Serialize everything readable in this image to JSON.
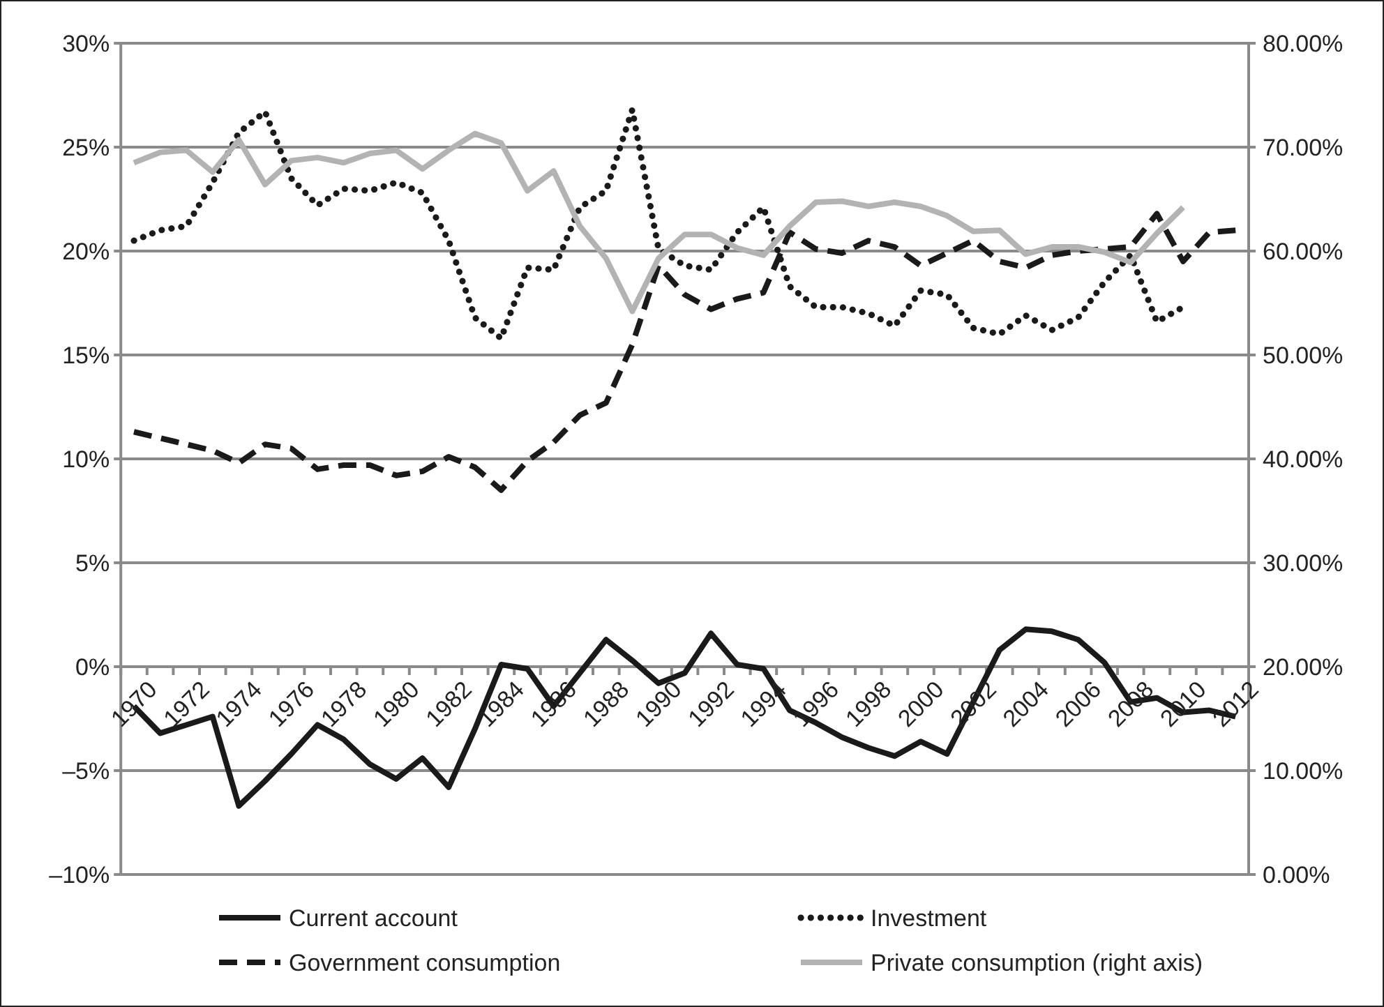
{
  "chart_data": {
    "type": "line",
    "categories": [
      "1970",
      null,
      "1972",
      null,
      "1974",
      null,
      "1976",
      null,
      "1978",
      null,
      "1980",
      null,
      "1982",
      null,
      "1984",
      null,
      "1986",
      null,
      "1988",
      null,
      "1990",
      null,
      "1992",
      null,
      "1994",
      null,
      "1996",
      null,
      "1998",
      null,
      "2000",
      null,
      "2002",
      null,
      "2004",
      null,
      "2006",
      null,
      "2008",
      null,
      "2010",
      null,
      "2012"
    ],
    "series": [
      {
        "name": "Current account",
        "color": "#1a1a1a",
        "line_style": "solid",
        "values": [
          -1.9,
          -3.2,
          -2.8,
          -2.4,
          -6.7,
          -5.5,
          -4.2,
          -2.8,
          -3.5,
          -4.7,
          -5.4,
          -4.4,
          -5.8,
          -3.0,
          0.1,
          -0.1,
          -1.9,
          -0.3,
          1.3,
          0.3,
          -0.8,
          -0.3,
          1.6,
          0.1,
          -0.1,
          -2.1,
          -2.7,
          -3.4,
          -3.9,
          -4.3,
          -3.6,
          -4.2,
          -1.7,
          0.8,
          1.8,
          1.7,
          1.3,
          0.2,
          -1.7,
          -1.5,
          -2.2,
          -2.1,
          -2.4
        ]
      },
      {
        "name": "Investment",
        "color": "#1a1a1a",
        "line_style": "dotted",
        "values": [
          20.5,
          21.0,
          21.2,
          23.3,
          25.7,
          26.7,
          23.5,
          22.2,
          23.0,
          22.9,
          23.3,
          22.8,
          20.5,
          16.8,
          15.8,
          19.2,
          19.1,
          22.1,
          22.9,
          26.8,
          20.1,
          19.3,
          19.1,
          20.9,
          22.1,
          18.3,
          17.3,
          17.3,
          17.0,
          16.4,
          18.1,
          17.9,
          16.3,
          16.0,
          16.9,
          16.2,
          16.8,
          18.5,
          19.8,
          16.6,
          17.3,
          null,
          null
        ]
      },
      {
        "name": "Government consumption",
        "color": "#1a1a1a",
        "line_style": "dashed",
        "values": [
          11.3,
          11.0,
          10.7,
          10.4,
          9.8,
          10.7,
          10.5,
          9.5,
          9.7,
          9.7,
          9.2,
          9.4,
          10.1,
          9.6,
          8.5,
          9.9,
          10.8,
          12.1,
          12.7,
          15.5,
          19.3,
          17.9,
          17.2,
          17.7,
          18.0,
          20.9,
          20.1,
          19.9,
          20.5,
          20.2,
          19.3,
          19.9,
          20.5,
          19.5,
          19.2,
          19.8,
          20.0,
          20.1,
          20.2,
          21.8,
          19.5,
          20.9,
          21.0
        ]
      },
      {
        "name": "Private consumption (right axis)",
        "color": "#b3b3b3",
        "line_style": "solid",
        "axis": "y2",
        "values": [
          68.5,
          69.5,
          69.7,
          67.6,
          70.7,
          66.4,
          68.7,
          69.0,
          68.5,
          69.4,
          69.7,
          67.9,
          69.7,
          71.3,
          70.4,
          65.8,
          67.7,
          62.4,
          59.3,
          54.2,
          59.3,
          61.6,
          61.6,
          60.3,
          59.6,
          62.4,
          64.7,
          64.8,
          64.3,
          64.7,
          64.3,
          63.4,
          61.9,
          62.0,
          59.7,
          60.4,
          60.4,
          59.9,
          58.9,
          61.7,
          64.2,
          null,
          null
        ]
      }
    ],
    "ylim": [
      -10,
      30
    ],
    "yticks": [
      {
        "value": -10,
        "label": "–10%"
      },
      {
        "value": -5,
        "label": "–5%"
      },
      {
        "value": 0,
        "label": "0%"
      },
      {
        "value": 5,
        "label": "5%"
      },
      {
        "value": 10,
        "label": "10%"
      },
      {
        "value": 15,
        "label": "15%"
      },
      {
        "value": 20,
        "label": "20%"
      },
      {
        "value": 25,
        "label": "25%"
      },
      {
        "value": 30,
        "label": "30%"
      }
    ],
    "y2lim": [
      0,
      80
    ],
    "y2ticks": [
      {
        "value": 0,
        "label": "0.00%"
      },
      {
        "value": 10,
        "label": "10.00%"
      },
      {
        "value": 20,
        "label": "20.00%"
      },
      {
        "value": 30,
        "label": "30.00%"
      },
      {
        "value": 40,
        "label": "40.00%"
      },
      {
        "value": 50,
        "label": "50.00%"
      },
      {
        "value": 60,
        "label": "60.00%"
      },
      {
        "value": 70,
        "label": "70.00%"
      },
      {
        "value": 80,
        "label": "80.00%"
      }
    ],
    "grid": "y",
    "legend": "bottom"
  }
}
